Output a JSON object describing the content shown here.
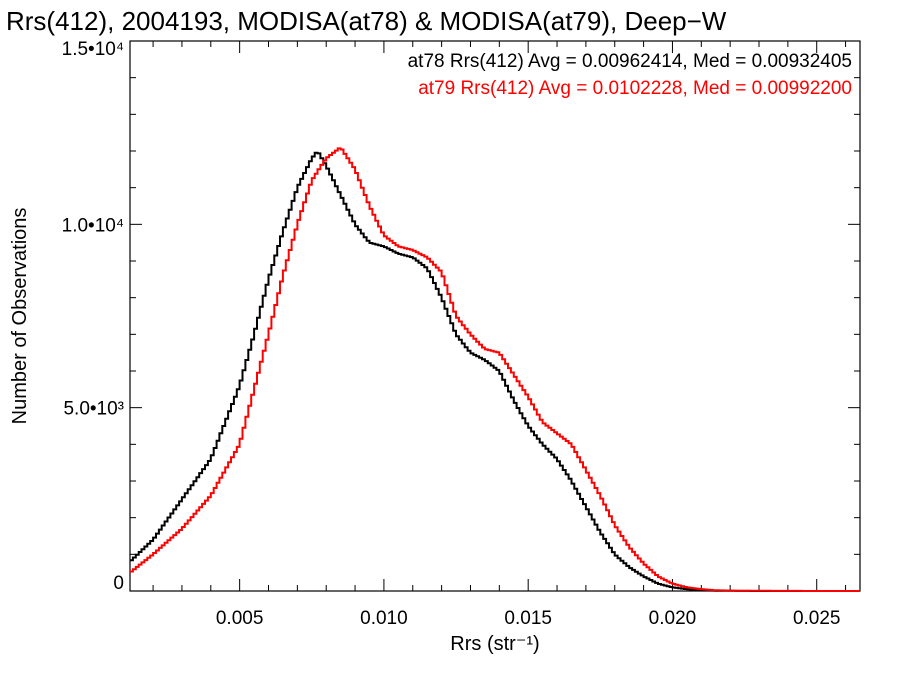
{
  "title": "Rrs(412), 2004193, MODISA(at78) & MODISA(at79), Deep−W",
  "chart_data": {
    "type": "line",
    "xlabel": "Rrs (str⁻¹)",
    "ylabel": "Number of Observations",
    "xlim": [
      0.0012,
      0.0265
    ],
    "ylim": [
      0,
      15000
    ],
    "xticks": [
      0.005,
      0.01,
      0.015,
      0.02,
      0.025
    ],
    "xtick_labels": [
      "0.005",
      "0.010",
      "0.015",
      "0.020",
      "0.025"
    ],
    "yticks": [
      0,
      5000,
      10000,
      15000
    ],
    "ytick_labels": [
      "0",
      "5.0•10³",
      "1.0•10⁴",
      "1.5•10⁴"
    ],
    "legend_placement": "top-right",
    "grid": false,
    "series": [
      {
        "name": "at78 Rrs(412) Avg = 0.00962414, Med = 0.00932405",
        "color": "#000000",
        "x": [
          0.0012,
          0.002,
          0.003,
          0.004,
          0.005,
          0.0055,
          0.006,
          0.0065,
          0.007,
          0.0075,
          0.0077,
          0.008,
          0.0085,
          0.009,
          0.0095,
          0.01,
          0.0105,
          0.011,
          0.0115,
          0.012,
          0.0125,
          0.013,
          0.0135,
          0.014,
          0.0145,
          0.015,
          0.0155,
          0.016,
          0.0165,
          0.017,
          0.0175,
          0.018,
          0.0185,
          0.019,
          0.0195,
          0.02,
          0.0205,
          0.021,
          0.0215,
          0.022,
          0.023,
          0.025,
          0.0265
        ],
        "y": [
          800,
          1400,
          2500,
          3600,
          5600,
          7000,
          8500,
          9800,
          11000,
          11800,
          12000,
          11600,
          10800,
          10000,
          9500,
          9400,
          9200,
          9100,
          8800,
          8000,
          7000,
          6500,
          6300,
          6000,
          5200,
          4500,
          4000,
          3600,
          3000,
          2300,
          1600,
          1000,
          650,
          400,
          200,
          100,
          50,
          20,
          10,
          5,
          0,
          0,
          0
        ]
      },
      {
        "name": "at79 Rrs(412) Avg = 0.0102228, Med = 0.00992200",
        "color": "#ff0000",
        "x": [
          0.0012,
          0.002,
          0.003,
          0.004,
          0.005,
          0.0055,
          0.006,
          0.0065,
          0.007,
          0.0075,
          0.008,
          0.0085,
          0.009,
          0.0095,
          0.01,
          0.0105,
          0.011,
          0.0115,
          0.012,
          0.0125,
          0.013,
          0.0135,
          0.014,
          0.0145,
          0.015,
          0.0155,
          0.016,
          0.0165,
          0.017,
          0.0175,
          0.018,
          0.0185,
          0.019,
          0.0195,
          0.02,
          0.0205,
          0.021,
          0.0215,
          0.022,
          0.023,
          0.025,
          0.0265
        ],
        "y": [
          500,
          1000,
          1700,
          2600,
          4000,
          5500,
          7000,
          8600,
          10000,
          11200,
          11800,
          12100,
          11500,
          10500,
          9700,
          9400,
          9300,
          9100,
          8700,
          7500,
          7000,
          6600,
          6500,
          5900,
          5300,
          4600,
          4300,
          4000,
          3300,
          2600,
          1800,
          1200,
          750,
          400,
          200,
          100,
          50,
          20,
          10,
          5,
          0,
          0
        ]
      }
    ]
  }
}
